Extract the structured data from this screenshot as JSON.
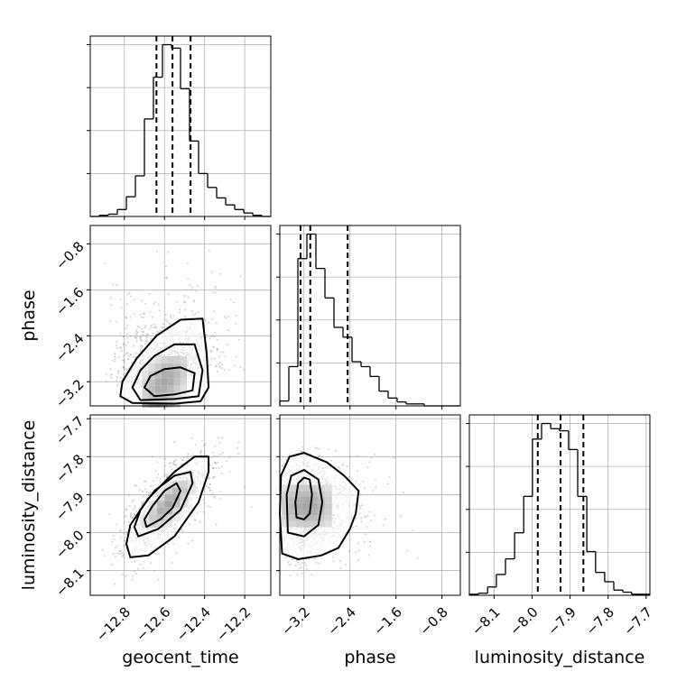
{
  "chart_data": {
    "type": "corner",
    "parameters": [
      "geocent_time",
      "phase",
      "luminosity_distance"
    ],
    "axis_labels": {
      "x": [
        "geocent_time",
        "phase",
        "luminosity_distance"
      ],
      "y": [
        "phase",
        "luminosity_distance"
      ]
    },
    "ranges": {
      "geocent_time": [
        -12.97,
        -12.07
      ],
      "phase": [
        -3.62,
        -0.48
      ],
      "luminosity_distance": [
        -8.165,
        -7.69
      ]
    },
    "ticks": {
      "geocent_time": [
        -12.8,
        -12.6,
        -12.4,
        -12.2
      ],
      "phase": [
        -3.2,
        -2.4,
        -1.6,
        -0.8
      ],
      "luminosity_distance": [
        -8.1,
        -8.0,
        -7.9,
        -7.8,
        -7.7
      ]
    },
    "tick_labels": {
      "geocent_time": [
        "−12.8",
        "−12.6",
        "−12.4",
        "−12.2"
      ],
      "phase": [
        "−3.2",
        "−2.4",
        "−1.6",
        "−0.8"
      ],
      "luminosity_distance": [
        "−8.1",
        "−8.0",
        "−7.9",
        "−7.8",
        "−7.7"
      ]
    },
    "quantiles": {
      "geocent_time": [
        -12.64,
        -12.56,
        -12.47
      ],
      "phase": [
        -3.26,
        -3.09,
        -2.44
      ],
      "luminosity_distance": [
        -7.985,
        -7.925,
        -7.865
      ]
    },
    "histograms": {
      "geocent_time": {
        "edges": [
          -12.97,
          -12.925,
          -12.88,
          -12.835,
          -12.79,
          -12.745,
          -12.7,
          -12.655,
          -12.61,
          -12.565,
          -12.52,
          -12.475,
          -12.43,
          -12.385,
          -12.34,
          -12.295,
          -12.25,
          -12.205,
          -12.16,
          -12.115,
          -12.07
        ],
        "counts": [
          0,
          1,
          2,
          6,
          17,
          35,
          84,
          120,
          148,
          145,
          110,
          65,
          37,
          25,
          16,
          10,
          6,
          3,
          1,
          0
        ]
      },
      "phase": {
        "edges": [
          -3.62,
          -3.463,
          -3.306,
          -3.149,
          -2.992,
          -2.835,
          -2.678,
          -2.521,
          -2.364,
          -2.207,
          -2.05,
          -1.893,
          -1.736,
          -1.579,
          -1.422,
          -1.265,
          -1.108,
          -0.951,
          -0.794,
          -0.637,
          -0.48
        ],
        "counts": [
          5,
          40,
          150,
          175,
          140,
          110,
          80,
          70,
          45,
          40,
          30,
          15,
          8,
          4,
          2,
          2,
          0,
          0,
          0,
          0
        ]
      },
      "luminosity_distance": {
        "edges": [
          -8.165,
          -8.141,
          -8.117,
          -8.094,
          -8.07,
          -8.046,
          -8.022,
          -7.999,
          -7.975,
          -7.951,
          -7.928,
          -7.904,
          -7.88,
          -7.856,
          -7.833,
          -7.809,
          -7.785,
          -7.761,
          -7.738,
          -7.714,
          -7.69
        ],
        "counts": [
          1,
          2,
          8,
          20,
          35,
          60,
          95,
          150,
          165,
          160,
          158,
          140,
          95,
          42,
          22,
          13,
          5,
          3,
          1,
          1
        ]
      }
    },
    "pairs": [
      {
        "x": "geocent_time",
        "y": "phase",
        "center": [
          -12.6,
          -3.2
        ],
        "spread": [
          0.1,
          0.42
        ],
        "correlation": 0.45,
        "scatter_extent": [
          [
            -12.9,
            -12.2
          ],
          [
            -3.6,
            -0.8
          ]
        ],
        "contours": [
          [
            [
              -12.65,
              -3.45
            ],
            [
              -12.55,
              -3.42
            ],
            [
              -12.46,
              -3.35
            ],
            [
              -12.45,
              -3.05
            ],
            [
              -12.52,
              -2.95
            ],
            [
              -12.6,
              -2.98
            ],
            [
              -12.67,
              -3.1
            ],
            [
              -12.7,
              -3.3
            ]
          ],
          [
            [
              -12.72,
              -3.52
            ],
            [
              -12.55,
              -3.5
            ],
            [
              -12.43,
              -3.45
            ],
            [
              -12.41,
              -3.0
            ],
            [
              -12.45,
              -2.55
            ],
            [
              -12.55,
              -2.55
            ],
            [
              -12.65,
              -2.75
            ],
            [
              -12.72,
              -3.0
            ],
            [
              -12.76,
              -3.3
            ]
          ],
          [
            [
              -12.76,
              -3.57
            ],
            [
              -12.55,
              -3.58
            ],
            [
              -12.42,
              -3.54
            ],
            [
              -12.38,
              -3.3
            ],
            [
              -12.39,
              -2.7
            ],
            [
              -12.41,
              -2.1
            ],
            [
              -12.52,
              -2.12
            ],
            [
              -12.64,
              -2.4
            ],
            [
              -12.74,
              -2.8
            ],
            [
              -12.81,
              -3.2
            ],
            [
              -12.82,
              -3.45
            ]
          ]
        ]
      },
      {
        "x": "geocent_time",
        "y": "luminosity_distance",
        "center": [
          -12.58,
          -7.925
        ],
        "spread": [
          0.09,
          0.055
        ],
        "correlation": 0.75,
        "scatter_extent": [
          [
            -12.95,
            -12.1
          ],
          [
            -8.14,
            -7.75
          ]
        ],
        "contours": [
          [
            [
              -12.69,
              -7.985
            ],
            [
              -12.62,
              -7.965
            ],
            [
              -12.56,
              -7.935
            ],
            [
              -12.52,
              -7.89
            ],
            [
              -12.54,
              -7.87
            ],
            [
              -12.6,
              -7.89
            ],
            [
              -12.66,
              -7.93
            ],
            [
              -12.7,
              -7.965
            ]
          ],
          [
            [
              -12.73,
              -8.01
            ],
            [
              -12.63,
              -7.99
            ],
            [
              -12.52,
              -7.94
            ],
            [
              -12.46,
              -7.87
            ],
            [
              -12.47,
              -7.84
            ],
            [
              -12.55,
              -7.85
            ],
            [
              -12.65,
              -7.89
            ],
            [
              -12.72,
              -7.94
            ],
            [
              -12.75,
              -7.985
            ]
          ],
          [
            [
              -12.77,
              -8.065
            ],
            [
              -12.68,
              -8.06
            ],
            [
              -12.55,
              -8.01
            ],
            [
              -12.43,
              -7.92
            ],
            [
              -12.38,
              -7.84
            ],
            [
              -12.38,
              -7.8
            ],
            [
              -12.45,
              -7.8
            ],
            [
              -12.55,
              -7.84
            ],
            [
              -12.68,
              -7.91
            ],
            [
              -12.77,
              -7.98
            ],
            [
              -12.79,
              -8.03
            ]
          ]
        ]
      },
      {
        "x": "phase",
        "y": "luminosity_distance",
        "center": [
          -3.15,
          -7.93
        ],
        "spread": [
          0.42,
          0.055
        ],
        "correlation": 0.0,
        "scatter_extent": [
          [
            -3.6,
            -0.85
          ],
          [
            -8.12,
            -7.77
          ]
        ],
        "contours": [
          [
            [
              -3.33,
              -7.96
            ],
            [
              -3.2,
              -7.965
            ],
            [
              -3.1,
              -7.95
            ],
            [
              -3.06,
              -7.9
            ],
            [
              -3.1,
              -7.86
            ],
            [
              -3.2,
              -7.855
            ],
            [
              -3.3,
              -7.87
            ],
            [
              -3.35,
              -7.92
            ]
          ],
          [
            [
              -3.48,
              -8.0
            ],
            [
              -3.2,
              -8.01
            ],
            [
              -2.95,
              -7.98
            ],
            [
              -2.88,
              -7.92
            ],
            [
              -2.95,
              -7.86
            ],
            [
              -3.2,
              -7.835
            ],
            [
              -3.42,
              -7.85
            ],
            [
              -3.5,
              -7.9
            ]
          ],
          [
            [
              -3.58,
              -8.055
            ],
            [
              -3.3,
              -8.07
            ],
            [
              -2.9,
              -8.06
            ],
            [
              -2.6,
              -8.04
            ],
            [
              -2.4,
              -7.99
            ],
            [
              -2.3,
              -7.95
            ],
            [
              -2.25,
              -7.89
            ],
            [
              -2.5,
              -7.85
            ],
            [
              -2.8,
              -7.815
            ],
            [
              -3.2,
              -7.79
            ],
            [
              -3.45,
              -7.8
            ],
            [
              -3.6,
              -7.85
            ],
            [
              -3.62,
              -7.95
            ]
          ]
        ]
      }
    ]
  }
}
